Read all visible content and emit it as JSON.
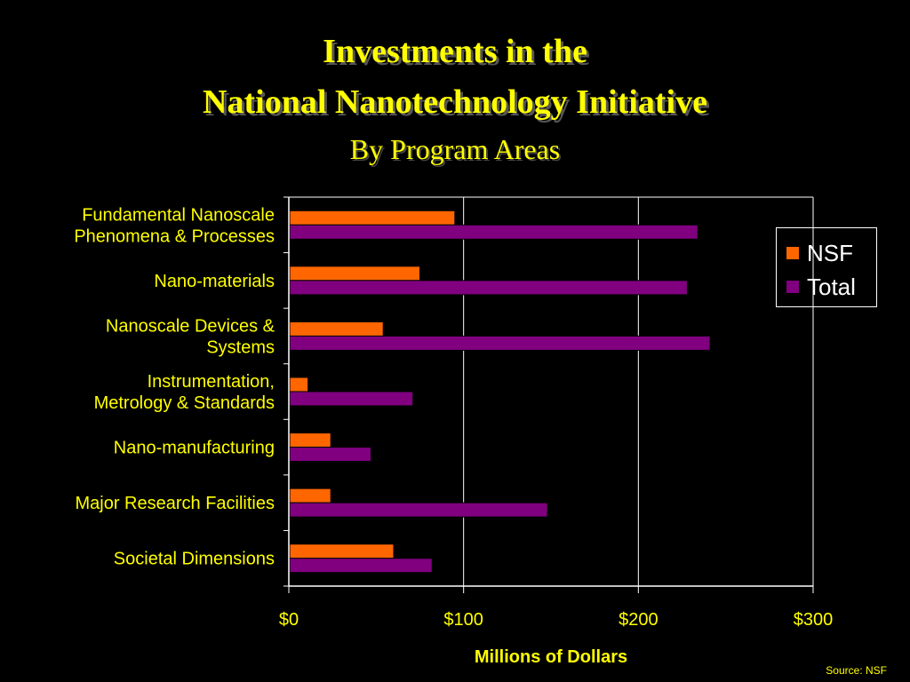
{
  "title": {
    "line1": "Investments in the",
    "line2": "National Nanotechnology Initiative",
    "subtitle": "By Program Areas"
  },
  "source": "Source: NSF",
  "colors": {
    "background": "#000000",
    "text": "#ffff00",
    "nsf": "#ff6600",
    "total": "#800080",
    "axis": "#ffffff"
  },
  "chart_data": {
    "type": "bar",
    "orientation": "horizontal",
    "categories": [
      [
        "Fundamental Nanoscale",
        "Phenomena & Processes"
      ],
      [
        "Nano-materials"
      ],
      [
        "Nanoscale Devices &",
        "Systems"
      ],
      [
        "Instrumentation,",
        "Metrology & Standards"
      ],
      [
        "Nano-manufacturing"
      ],
      [
        "Major Research Facilities"
      ],
      [
        "Societal Dimensions"
      ]
    ],
    "series": [
      {
        "name": "NSF",
        "color": "#ff6600",
        "values": [
          95,
          75,
          54,
          11,
          24,
          24,
          60
        ]
      },
      {
        "name": "Total",
        "color": "#800080",
        "values": [
          234,
          228,
          241,
          71,
          47,
          148,
          82
        ]
      }
    ],
    "xlabel": "Millions of Dollars",
    "ylabel": "",
    "xlim": [
      0,
      300
    ],
    "ticks": [
      0,
      100,
      200,
      300
    ],
    "tick_labels": [
      "$0",
      "$100",
      "$200",
      "$300"
    ],
    "grid": true,
    "legend": "right"
  }
}
